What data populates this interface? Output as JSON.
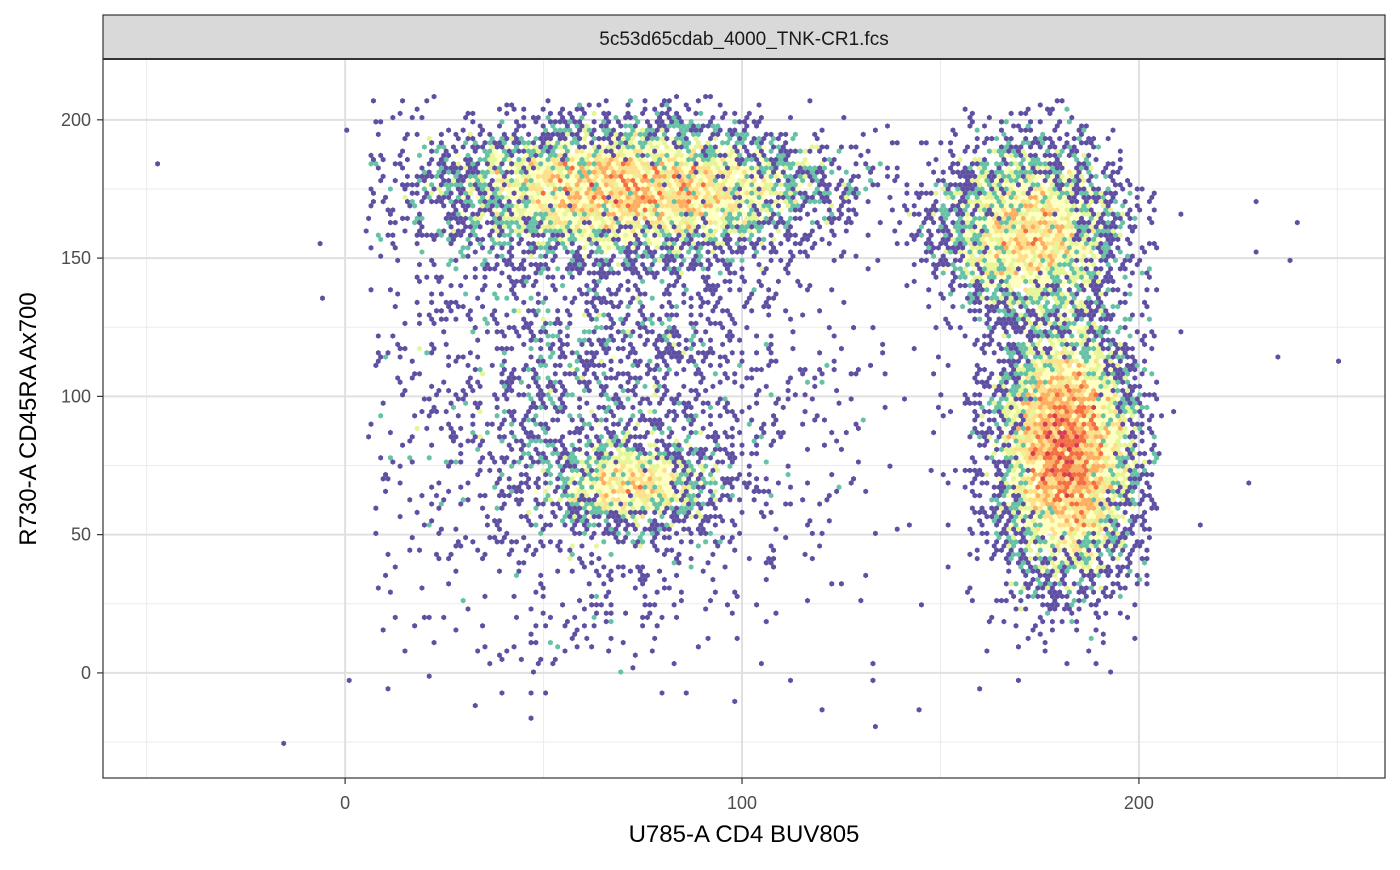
{
  "chart_data": {
    "type": "hexbin-density",
    "facet_label": "5c53d65cdab_4000_TNK-CR1.fcs",
    "xlabel": "U785-A CD4 BUV805",
    "ylabel": "R730-A CD45RA Ax700",
    "xlim": [
      -61,
      262
    ],
    "ylim": [
      -38,
      222
    ],
    "x_ticks": [
      0,
      100,
      200
    ],
    "x_tick_labels": [
      "0",
      "100",
      "200"
    ],
    "y_ticks": [
      0,
      50,
      100,
      150,
      200
    ],
    "y_tick_labels": [
      "0",
      "50",
      "100",
      "150",
      "200"
    ],
    "grid": true,
    "color_scale": [
      "#5E4FA2",
      "#3288BD",
      "#66C2A5",
      "#ABDDA4",
      "#E6F598",
      "#FFFFBF",
      "#FEE08B",
      "#FDAE61",
      "#F46D43",
      "#D53E4F"
    ],
    "populations": [
      {
        "name": "upper-left",
        "center": [
          72,
          175
        ],
        "spread": [
          24,
          11
        ],
        "weight": 0.3
      },
      {
        "name": "lower-left",
        "center": [
          72,
          68
        ],
        "spread": [
          10,
          8
        ],
        "weight": 0.07
      },
      {
        "name": "upper-right",
        "center": [
          172,
          160
        ],
        "spread": [
          11,
          15
        ],
        "weight": 0.16
      },
      {
        "name": "lower-right",
        "center": [
          182,
          80
        ],
        "spread": [
          8,
          22
        ],
        "weight": 0.32
      },
      {
        "name": "diffuse-left",
        "center": [
          65,
          110
        ],
        "spread": [
          28,
          50
        ],
        "weight": 0.12
      },
      {
        "name": "diffuse-right",
        "center": [
          178,
          110
        ],
        "spread": [
          14,
          45
        ],
        "weight": 0.03
      }
    ],
    "outliers": [
      [
        -47,
        184
      ],
      [
        -6,
        155
      ],
      [
        -6,
        136
      ],
      [
        0,
        196
      ],
      [
        1,
        -3
      ],
      [
        -16,
        -26
      ],
      [
        12,
        168
      ],
      [
        230,
        171
      ],
      [
        240,
        162
      ],
      [
        238,
        150
      ],
      [
        250,
        113
      ],
      [
        235,
        115
      ],
      [
        229,
        152
      ],
      [
        228,
        68
      ],
      [
        215,
        54
      ],
      [
        210,
        166
      ],
      [
        211,
        123
      ],
      [
        209,
        94
      ],
      [
        206,
        93
      ],
      [
        199,
        12
      ],
      [
        199,
        25
      ],
      [
        134,
        -20
      ],
      [
        120,
        -14
      ],
      [
        145,
        -14
      ],
      [
        98,
        -11
      ],
      [
        33,
        -12
      ],
      [
        47,
        -16
      ],
      [
        195,
        164
      ]
    ]
  }
}
